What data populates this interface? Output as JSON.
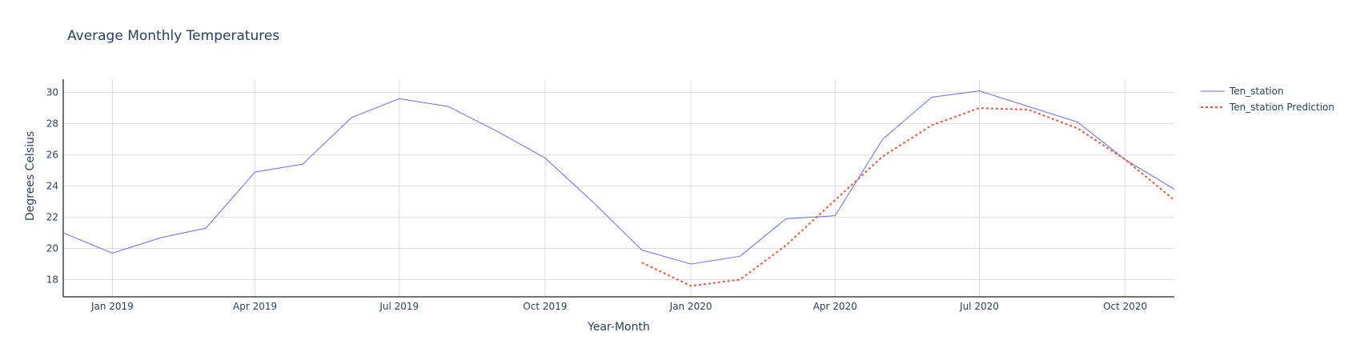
{
  "chart_data": {
    "type": "line",
    "title": "Average Monthly Temperatures",
    "xlabel": "Year-Month",
    "ylabel": "Degrees Celsius",
    "x_ticks": [
      "Jan 2019",
      "Apr 2019",
      "Jul 2019",
      "Oct 2019",
      "Jan 2020",
      "Apr 2020",
      "Jul 2020",
      "Oct 2020"
    ],
    "x_tick_dates": [
      "2019-01",
      "2019-04",
      "2019-07",
      "2019-10",
      "2020-01",
      "2020-04",
      "2020-07",
      "2020-10"
    ],
    "xlim": [
      "2018-12-01",
      "2020-11-01"
    ],
    "ylim": [
      16.9,
      30.8
    ],
    "y_ticks": [
      18,
      20,
      22,
      24,
      26,
      28,
      30
    ],
    "grid": true,
    "legend_position": "top-right",
    "series": [
      {
        "name": "Ten_station",
        "color": "#636efa",
        "style": "solid",
        "x": [
          "2018-12-01",
          "2019-01-01",
          "2019-02-01",
          "2019-03-01",
          "2019-04-01",
          "2019-05-01",
          "2019-06-01",
          "2019-07-01",
          "2019-08-01",
          "2019-09-01",
          "2019-10-01",
          "2019-11-01",
          "2019-12-01",
          "2020-01-01",
          "2020-02-01",
          "2020-03-01",
          "2020-04-01",
          "2020-05-01",
          "2020-06-01",
          "2020-07-01",
          "2020-08-01",
          "2020-09-01",
          "2020-10-01",
          "2020-11-01"
        ],
        "y": [
          21.0,
          19.7,
          20.7,
          21.3,
          24.9,
          25.4,
          28.4,
          29.6,
          29.1,
          27.5,
          25.8,
          22.9,
          19.9,
          19.0,
          19.5,
          21.9,
          22.1,
          27.0,
          29.7,
          30.1,
          29.1,
          28.1,
          25.7,
          23.8
        ]
      },
      {
        "name": "Ten_station Prediction",
        "color": "#ef553b",
        "style": "dotted",
        "x": [
          "2019-12-01",
          "2020-01-01",
          "2020-02-01",
          "2020-03-01",
          "2020-04-01",
          "2020-05-01",
          "2020-06-01",
          "2020-07-01",
          "2020-08-01",
          "2020-09-01",
          "2020-10-01",
          "2020-11-01"
        ],
        "y": [
          19.1,
          17.6,
          18.0,
          20.2,
          23.1,
          25.9,
          27.9,
          29.0,
          28.9,
          27.7,
          25.7,
          23.1
        ]
      }
    ]
  }
}
